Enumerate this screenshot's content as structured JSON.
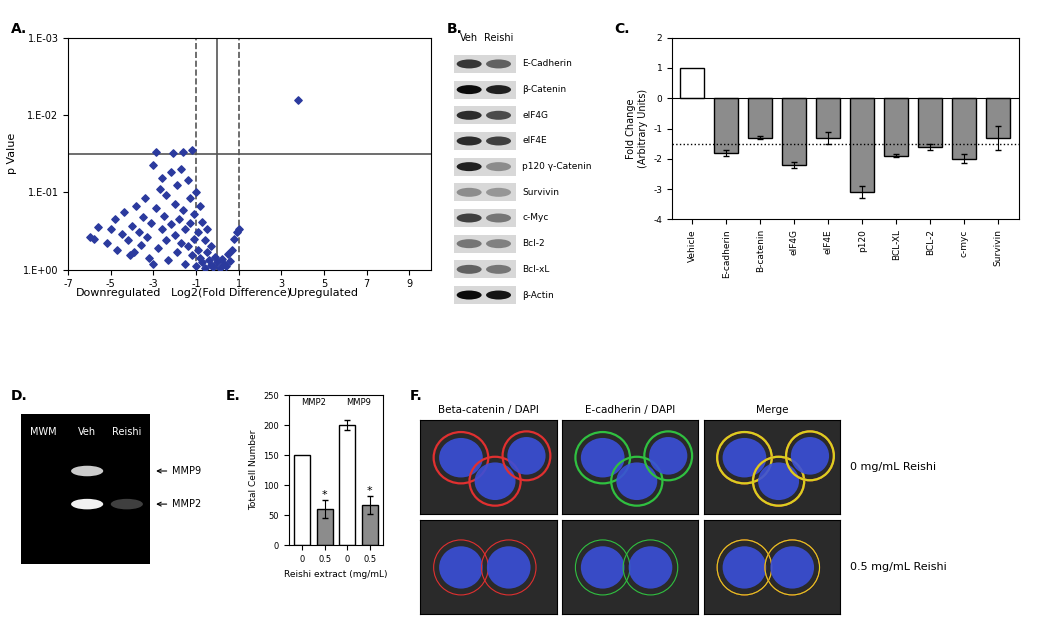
{
  "chart_data": [
    {
      "type": "scatter",
      "title": "A.",
      "x_label": "Log2(Fold Difference)",
      "y_label": "p Value",
      "annotations": [
        "Downregulated",
        "Upregulated"
      ],
      "x": [
        -6.0,
        -5.6,
        -5.2,
        -5.0,
        -4.8,
        -4.7,
        -4.5,
        -4.4,
        -4.2,
        -4.0,
        -3.9,
        -3.8,
        -3.7,
        -3.6,
        -3.5,
        -3.4,
        -3.3,
        -3.2,
        -3.1,
        -3.0,
        -2.9,
        -2.9,
        -2.8,
        -2.7,
        -2.6,
        -2.6,
        -2.5,
        -2.4,
        -2.4,
        -2.3,
        -2.2,
        -2.2,
        -2.1,
        -2.0,
        -2.0,
        -1.9,
        -1.9,
        -1.8,
        -1.7,
        -1.7,
        -1.6,
        -1.6,
        -1.5,
        -1.5,
        -1.4,
        -1.4,
        -1.3,
        -1.3,
        -1.2,
        -1.2,
        -1.1,
        -1.1,
        -1.0,
        -1.0,
        -0.9,
        -0.9,
        -0.8,
        -0.8,
        -0.7,
        -0.7,
        -0.6,
        -0.6,
        -0.5,
        -0.5,
        -0.4,
        -0.3,
        -0.3,
        -0.2,
        -0.1,
        0.0,
        0.1,
        0.2,
        0.3,
        0.4,
        0.5,
        0.6,
        0.7,
        0.8,
        0.9,
        1.0,
        -5.8,
        -4.1,
        -3.0,
        3.8
      ],
      "values": [
        0.38,
        0.28,
        0.45,
        0.3,
        0.22,
        0.55,
        0.35,
        0.18,
        0.42,
        0.27,
        0.6,
        0.15,
        0.33,
        0.48,
        0.21,
        0.12,
        0.38,
        0.7,
        0.25,
        0.045,
        0.03,
        0.16,
        0.52,
        0.09,
        0.3,
        0.065,
        0.2,
        0.42,
        0.11,
        0.75,
        0.055,
        0.26,
        0.031,
        0.14,
        0.36,
        0.6,
        0.08,
        0.22,
        0.05,
        0.45,
        0.03,
        0.17,
        0.3,
        0.85,
        0.07,
        0.5,
        0.12,
        0.25,
        0.028,
        0.65,
        0.19,
        0.4,
        0.1,
        0.9,
        0.33,
        0.55,
        0.15,
        0.7,
        0.24,
        0.8,
        0.42,
        0.95,
        0.6,
        0.3,
        0.75,
        0.5,
        0.88,
        0.92,
        0.68,
        0.8,
        0.95,
        0.72,
        0.85,
        0.9,
        0.62,
        0.78,
        0.55,
        0.4,
        0.33,
        0.3,
        0.4,
        0.65,
        0.85,
        0.0065
      ],
      "color": "#2b3a9e",
      "marker": "diamond",
      "log": "y",
      "xlim": [
        -7,
        10
      ],
      "xticks": [
        -7,
        -5,
        -3,
        -1,
        1,
        3,
        5,
        7,
        9
      ],
      "ylim": [
        1,
        0.001
      ],
      "yticks": [
        {
          "value": 1,
          "label": "1.E+00"
        },
        {
          "value": 0.1,
          "label": "1.E-01"
        },
        {
          "value": 0.01,
          "label": "1.E-02"
        },
        {
          "value": 0.001,
          "label": "1.E-03"
        }
      ],
      "vlines": [
        -1,
        0,
        1
      ],
      "hline": 0.032
    },
    {
      "type": "bar",
      "title": "C.",
      "y_label": "Fold Change\n(Arbitrary Units)",
      "categories": [
        "Vehicle",
        "E-cadherin",
        "B-catenin",
        "eIF4G",
        "eIF4E",
        "p120",
        "BCL-XL",
        "BCL-2",
        "c-myc",
        "Survivin"
      ],
      "values": [
        1,
        -1.8,
        -1.3,
        -2.2,
        -1.3,
        -3.1,
        -1.9,
        -1.6,
        -2.0,
        -1.3
      ],
      "errors": [
        null,
        0.1,
        0.05,
        0.1,
        0.2,
        0.2,
        0.05,
        0.1,
        0.15,
        0.4
      ],
      "colors": [
        "#ffffff",
        "#8c8c8c",
        "#8c8c8c",
        "#8c8c8c",
        "#8c8c8c",
        "#8c8c8c",
        "#8c8c8c",
        "#8c8c8c",
        "#8c8c8c",
        "#8c8c8c"
      ],
      "ylim": [
        -4,
        2
      ],
      "yticks": [
        -4,
        -3,
        -2,
        -1,
        0,
        1,
        2
      ],
      "threshold": -1.5
    },
    {
      "type": "bar",
      "title": "E.",
      "x_label": "Reishi extract (mg/mL)",
      "y_label": "Total Cell Number",
      "groups": [
        "MMP2",
        "MMP9"
      ],
      "categories": [
        "0",
        "0.5",
        "0",
        "0.5"
      ],
      "values": [
        150,
        60,
        200,
        68
      ],
      "errors": [
        null,
        15,
        8,
        15
      ],
      "significance": [
        null,
        "*",
        null,
        "*"
      ],
      "colors": [
        "#ffffff",
        "#8c8c8c",
        "#ffffff",
        "#8c8c8c"
      ],
      "ylim": [
        0,
        250
      ],
      "yticks": [
        0,
        50,
        100,
        150,
        200,
        250
      ]
    }
  ],
  "blot": {
    "title": "B.",
    "lanes": [
      "Veh",
      "Reishi"
    ],
    "proteins": [
      "E-Cadherin",
      "β-Catenin",
      "eIF4G",
      "eIF4E",
      "p120 γ-Catenin",
      "Survivin",
      "c-Myc",
      "Bcl-2",
      "Bcl-xL",
      "β-Actin"
    ]
  },
  "zymogram": {
    "title": "D.",
    "lanes": [
      "MWM",
      "Veh",
      "Reishi"
    ],
    "bands": [
      "MMP9",
      "MMP2"
    ]
  },
  "micrographs": {
    "title": "F.",
    "columns": [
      "Beta-catenin / DAPI",
      "E-cadherin / DAPI",
      "Merge"
    ],
    "rows": [
      "0 mg/mL Reishi",
      "0.5 mg/mL Reishi"
    ]
  }
}
